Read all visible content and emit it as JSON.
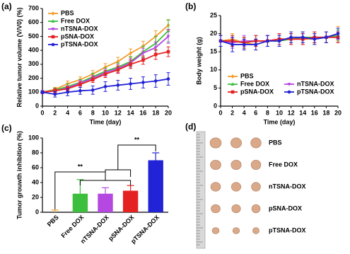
{
  "chart_data": [
    {
      "type": "line",
      "title": "(a)",
      "x_label": "Time (day)",
      "y_label": "Relative tumor volume (V/V0) (%)",
      "x": [
        0,
        2,
        4,
        6,
        8,
        10,
        12,
        14,
        16,
        18,
        20
      ],
      "xlim": [
        0,
        20
      ],
      "xticks": [
        0,
        2,
        4,
        6,
        8,
        10,
        12,
        14,
        16,
        18,
        20
      ],
      "ylim": [
        0,
        700
      ],
      "yticks": [
        0,
        100,
        200,
        300,
        400,
        500,
        600,
        700
      ],
      "legend": "upper left",
      "series": [
        {
          "name": "PBS",
          "color": "#f39c2b",
          "marker": "diamond",
          "values": [
            100,
            120,
            160,
            190,
            230,
            280,
            320,
            380,
            430,
            500,
            580
          ],
          "errors": [
            10,
            15,
            20,
            20,
            25,
            25,
            30,
            30,
            35,
            40,
            35
          ]
        },
        {
          "name": "Free DOX",
          "color": "#3cbf3c",
          "marker": "triangle",
          "values": [
            100,
            115,
            140,
            170,
            210,
            250,
            280,
            320,
            390,
            450,
            540
          ],
          "errors": [
            10,
            15,
            20,
            20,
            25,
            25,
            30,
            35,
            40,
            50,
            80
          ]
        },
        {
          "name": "nTSNA-DOX",
          "color": "#b548e0",
          "marker": "triangle-down",
          "values": [
            100,
            110,
            130,
            165,
            200,
            240,
            270,
            310,
            380,
            420,
            500
          ],
          "errors": [
            10,
            15,
            15,
            20,
            20,
            25,
            30,
            30,
            35,
            40,
            50
          ]
        },
        {
          "name": "pSNA-DOX",
          "color": "#e52222",
          "marker": "square",
          "values": [
            100,
            110,
            125,
            155,
            190,
            230,
            260,
            300,
            330,
            370,
            390
          ],
          "errors": [
            10,
            15,
            15,
            20,
            20,
            25,
            25,
            30,
            30,
            35,
            35
          ]
        },
        {
          "name": "pTSNA-DOX",
          "color": "#2222d6",
          "marker": "circle",
          "values": [
            100,
            85,
            100,
            110,
            115,
            140,
            150,
            160,
            170,
            180,
            195
          ],
          "errors": [
            10,
            20,
            25,
            25,
            30,
            35,
            35,
            40,
            40,
            45,
            45
          ]
        }
      ]
    },
    {
      "type": "line",
      "title": "(b)",
      "x_label": "Time (day)",
      "y_label": "Body weight (g)",
      "x": [
        0,
        2,
        4,
        6,
        8,
        10,
        12,
        14,
        16,
        18,
        20
      ],
      "xlim": [
        0,
        20
      ],
      "xticks": [
        0,
        2,
        4,
        6,
        8,
        10,
        12,
        14,
        16,
        18,
        20
      ],
      "ylim": [
        0,
        25
      ],
      "yticks": [
        0,
        5,
        10,
        15,
        20,
        25
      ],
      "legend": "lower center",
      "series": [
        {
          "name": "PBS",
          "color": "#f39c2b",
          "marker": "diamond",
          "values": [
            18,
            18.5,
            17.5,
            17,
            18,
            18,
            18.5,
            18.5,
            18.5,
            19,
            20
          ],
          "errors": [
            1.5,
            1.5,
            1.5,
            1.5,
            1.5,
            1.5,
            1.5,
            1.5,
            1.5,
            1.5,
            2
          ]
        },
        {
          "name": "Free DOX",
          "color": "#3cbf3c",
          "marker": "triangle",
          "values": [
            18,
            18,
            17.5,
            18,
            18,
            18,
            18.5,
            19,
            19,
            19,
            19.5
          ],
          "errors": [
            1.5,
            1.5,
            1.5,
            1.5,
            1.5,
            1.5,
            1.5,
            1.5,
            1.5,
            1.5,
            1.5
          ]
        },
        {
          "name": "nTSNA-DOX",
          "color": "#b548e0",
          "marker": "triangle-down",
          "values": [
            18,
            17.5,
            18,
            18,
            18,
            18.5,
            18.5,
            18.5,
            19,
            19,
            19
          ],
          "errors": [
            1.5,
            1.5,
            1.5,
            1.5,
            1.5,
            1.5,
            1.5,
            1.5,
            1.5,
            1.5,
            1.5
          ]
        },
        {
          "name": "pSNA-DOX",
          "color": "#e52222",
          "marker": "square",
          "values": [
            18,
            18,
            17.5,
            18,
            18,
            18.5,
            18.5,
            18.5,
            19,
            19,
            19
          ],
          "errors": [
            1.5,
            1.5,
            1.5,
            1.5,
            1.5,
            1.5,
            1.5,
            1.5,
            1.5,
            1.5,
            1.5
          ]
        },
        {
          "name": "pTSNA-DOX",
          "color": "#2222d6",
          "marker": "circle",
          "values": [
            18,
            17,
            17,
            17,
            18,
            18,
            19,
            19,
            18.5,
            19,
            20
          ],
          "errors": [
            1.5,
            2,
            1.5,
            1.5,
            1.5,
            1.5,
            1.5,
            1.5,
            1.5,
            1.5,
            1.5
          ]
        }
      ]
    },
    {
      "type": "bar",
      "title": "(c)",
      "y_label": "Tumor grouwth inhibition (%)",
      "categories": [
        "PBS",
        "Free DOX",
        "nTSNA-DOX",
        "pSNA-DOX",
        "pTSNA-DOX"
      ],
      "values": [
        0,
        25,
        25,
        29,
        70
      ],
      "errors": [
        3,
        19,
        8,
        7,
        10
      ],
      "colors": [
        "#f39c2b",
        "#3cbf3c",
        "#b548e0",
        "#e52222",
        "#2222d6"
      ],
      "ylim": [
        0,
        100
      ],
      "yticks": [
        0,
        20,
        40,
        60,
        80,
        100
      ],
      "annotations": [
        "**",
        "**"
      ]
    }
  ],
  "panel_d": {
    "title": "(d)",
    "labels": [
      "PBS",
      "Free DOX",
      "nTSNA-DOX",
      "pSNA-DOX",
      "pTSNA-DOX"
    ]
  }
}
